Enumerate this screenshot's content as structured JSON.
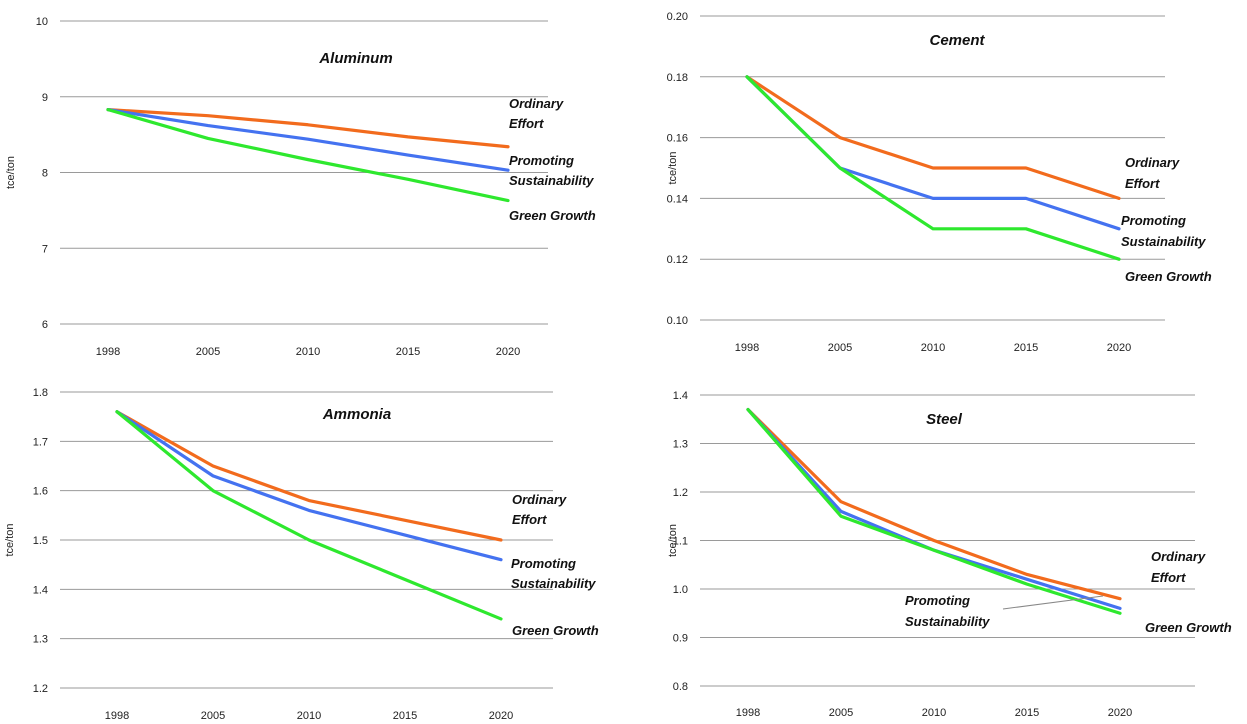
{
  "chart_data": [
    {
      "type": "line",
      "title": "Aluminum",
      "ylabel": "tce/ton",
      "xlabel": "",
      "categories": [
        "1998",
        "2005",
        "2010",
        "2015",
        "2020"
      ],
      "yticks": [
        "6",
        "7",
        "8",
        "9",
        "10"
      ],
      "ylim": [
        6,
        10
      ],
      "grid": true,
      "series": [
        {
          "name": "Ordinary Effort",
          "label_lines": [
            "Ordinary",
            "Effort"
          ],
          "color": "#f26b1d",
          "values": [
            8.83,
            8.75,
            8.63,
            8.47,
            8.34
          ]
        },
        {
          "name": "Promoting Sustainability",
          "label_lines": [
            "Promoting",
            "Sustainability"
          ],
          "color": "#4472f0",
          "values": [
            8.83,
            8.62,
            8.44,
            8.23,
            8.03
          ]
        },
        {
          "name": "Green Growth",
          "label_lines": [
            "Green Growth"
          ],
          "color": "#2ee82e",
          "values": [
            8.83,
            8.45,
            8.17,
            7.91,
            7.63
          ]
        }
      ]
    },
    {
      "type": "line",
      "title": "Cement",
      "ylabel": "tce/ton",
      "xlabel": "",
      "categories": [
        "1998",
        "2005",
        "2010",
        "2015",
        "2020"
      ],
      "yticks": [
        "0.10",
        "0.12",
        "0.14",
        "0.16",
        "0.18",
        "0.20"
      ],
      "ylim": [
        0.1,
        0.2
      ],
      "grid": true,
      "series": [
        {
          "name": "Ordinary Effort",
          "label_lines": [
            "Ordinary",
            "Effort"
          ],
          "color": "#f26b1d",
          "values": [
            0.18,
            0.16,
            0.15,
            0.15,
            0.14
          ]
        },
        {
          "name": "Promoting Sustainability",
          "label_lines": [
            "Promoting",
            "Sustainability"
          ],
          "color": "#4472f0",
          "values": [
            0.18,
            0.15,
            0.14,
            0.14,
            0.13
          ]
        },
        {
          "name": "Green Growth",
          "label_lines": [
            "Green Growth"
          ],
          "color": "#2ee82e",
          "values": [
            0.18,
            0.15,
            0.13,
            0.13,
            0.12
          ]
        }
      ]
    },
    {
      "type": "line",
      "title": "Ammonia",
      "ylabel": "tce/ton",
      "xlabel": "",
      "categories": [
        "1998",
        "2005",
        "2010",
        "2015",
        "2020"
      ],
      "yticks": [
        "1.2",
        "1.3",
        "1.4",
        "1.5",
        "1.6",
        "1.7",
        "1.8"
      ],
      "ylim": [
        1.2,
        1.8
      ],
      "grid": true,
      "series": [
        {
          "name": "Ordinary Effort",
          "label_lines": [
            "Ordinary",
            "Effort"
          ],
          "color": "#f26b1d",
          "values": [
            1.76,
            1.65,
            1.58,
            1.54,
            1.5
          ]
        },
        {
          "name": "Promoting Sustainability",
          "label_lines": [
            "Promoting",
            "Sustainability"
          ],
          "color": "#4472f0",
          "values": [
            1.76,
            1.63,
            1.56,
            1.51,
            1.46
          ]
        },
        {
          "name": "Green Growth",
          "label_lines": [
            "Green Growth"
          ],
          "color": "#2ee82e",
          "values": [
            1.76,
            1.6,
            1.5,
            1.42,
            1.34
          ]
        }
      ]
    },
    {
      "type": "line",
      "title": "Steel",
      "ylabel": "tce/ton",
      "xlabel": "",
      "categories": [
        "1998",
        "2005",
        "2010",
        "2015",
        "2020"
      ],
      "yticks": [
        "0.8",
        "0.9",
        "1.0",
        "1.1",
        "1.2",
        "1.3",
        "1.4"
      ],
      "ylim": [
        0.8,
        1.4
      ],
      "grid": true,
      "series": [
        {
          "name": "Ordinary Effort",
          "label_lines": [
            "Ordinary",
            "Effort"
          ],
          "color": "#f26b1d",
          "values": [
            1.37,
            1.18,
            1.1,
            1.03,
            0.98
          ]
        },
        {
          "name": "Promoting Sustainability",
          "label_lines": [
            "Promoting",
            "Sustainability"
          ],
          "color": "#4472f0",
          "values": [
            1.37,
            1.16,
            1.08,
            1.02,
            0.96
          ]
        },
        {
          "name": "Green Growth",
          "label_lines": [
            "Green Growth"
          ],
          "color": "#2ee82e",
          "values": [
            1.37,
            1.15,
            1.08,
            1.01,
            0.95
          ]
        }
      ]
    }
  ]
}
